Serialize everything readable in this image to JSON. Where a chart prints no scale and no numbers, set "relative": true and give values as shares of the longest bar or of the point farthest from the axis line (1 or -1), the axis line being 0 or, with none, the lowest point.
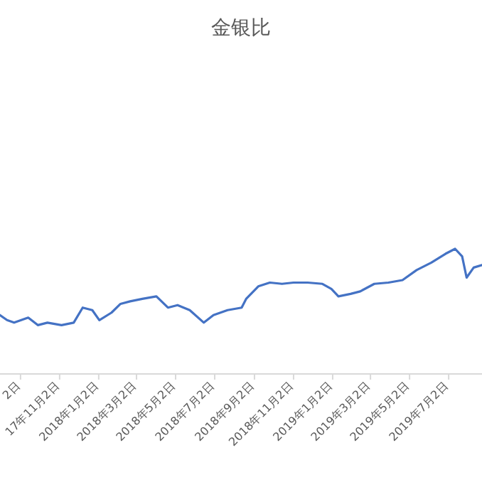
{
  "chart_data": {
    "type": "line",
    "title": "金银比",
    "relative": true,
    "x": [
      "2017-08-01",
      "2017-08-12",
      "2017-08-23",
      "2017-09-14",
      "2017-09-29",
      "2017-10-14",
      "2017-11-05",
      "2017-11-24",
      "2017-12-08",
      "2017-12-23",
      "2018-01-03",
      "2018-01-22",
      "2018-02-05",
      "2018-02-20",
      "2018-03-11",
      "2018-04-02",
      "2018-04-20",
      "2018-05-05",
      "2018-05-24",
      "2018-06-15",
      "2018-06-30",
      "2018-07-22",
      "2018-08-13",
      "2018-08-20",
      "2018-09-08",
      "2018-09-26",
      "2018-10-15",
      "2018-11-02",
      "2018-11-24",
      "2018-12-17",
      "2018-12-31",
      "2019-01-11",
      "2019-01-30",
      "2019-02-14",
      "2019-03-08",
      "2019-03-30",
      "2019-04-21",
      "2019-05-13",
      "2019-06-05",
      "2019-06-27",
      "2019-07-12",
      "2019-07-23",
      "2019-07-30",
      "2019-08-10",
      "2019-08-23"
    ],
    "series": [
      {
        "color": "#4472c4",
        "values": [
          0.47,
          0.43,
          0.41,
          0.45,
          0.39,
          0.41,
          0.39,
          0.41,
          0.53,
          0.51,
          0.43,
          0.49,
          0.56,
          0.58,
          0.6,
          0.62,
          0.53,
          0.55,
          0.51,
          0.41,
          0.47,
          0.51,
          0.53,
          0.6,
          0.7,
          0.73,
          0.72,
          0.73,
          0.73,
          0.72,
          0.68,
          0.62,
          0.64,
          0.66,
          0.72,
          0.73,
          0.75,
          0.83,
          0.89,
          0.96,
          1,
          0.94,
          0.77,
          0.85,
          0.87
        ]
      }
    ],
    "xlim": [
      "2017-08-01",
      "2019-08-23"
    ],
    "xticks": [
      {
        "value": "2017-09-02",
        "label": "2日"
      },
      {
        "value": "2017-11-02",
        "label": "17年11月2日"
      },
      {
        "value": "2018-01-02",
        "label": "2018年1月2日"
      },
      {
        "value": "2018-03-02",
        "label": "2018年3月2日"
      },
      {
        "value": "2018-05-02",
        "label": "2018年5月2日"
      },
      {
        "value": "2018-07-02",
        "label": "2018年7月2日"
      },
      {
        "value": "2018-09-02",
        "label": "2018年9月2日"
      },
      {
        "value": "2018-11-02",
        "label": "2018年11月2日"
      },
      {
        "value": "2019-01-02",
        "label": "2019年1月2日"
      },
      {
        "value": "2019-03-02",
        "label": "2019年3月2日"
      },
      {
        "value": "2019-05-02",
        "label": "2019年5月2日"
      },
      {
        "value": "2019-07-02",
        "label": "2019年7月2日"
      }
    ]
  }
}
